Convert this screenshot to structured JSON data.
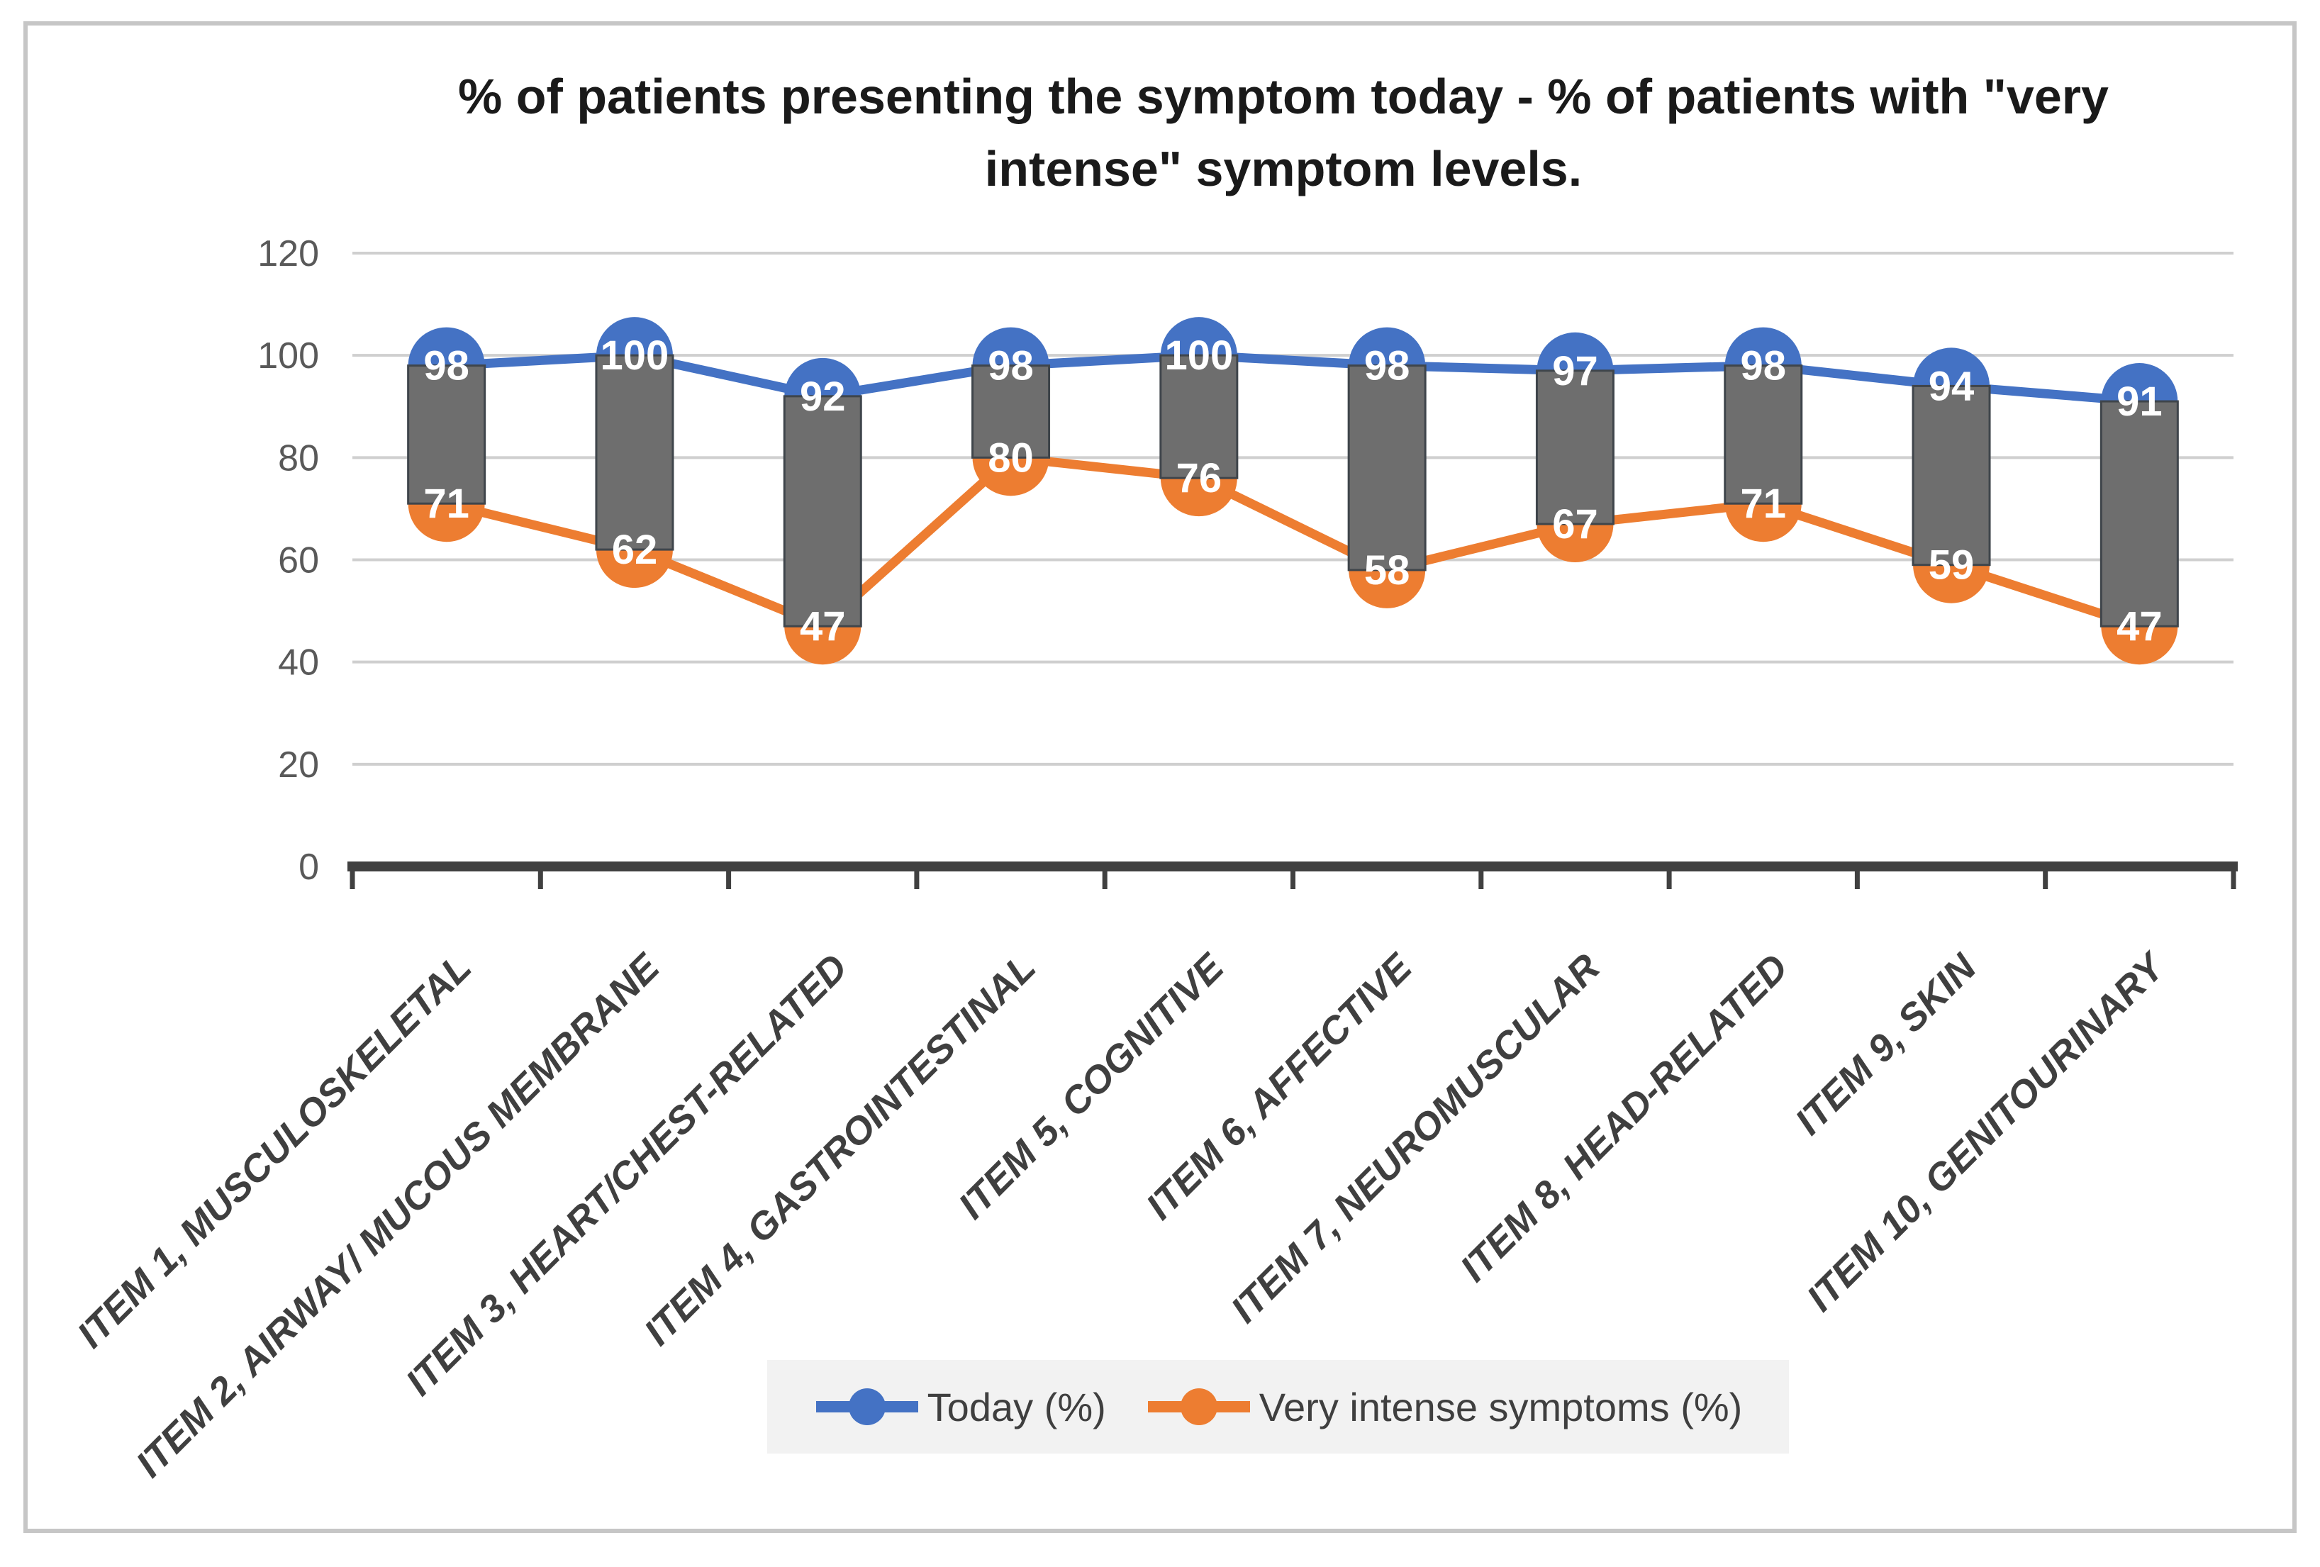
{
  "header": {
    "line1": "% of patients presenting the symptom today - % of patients with \"very",
    "line2": "intense\" symptom levels."
  },
  "legend": {
    "items": [
      {
        "label": "Today (%)"
      },
      {
        "label": "Very intense symptoms (%)"
      }
    ]
  },
  "chart_data": {
    "type": "line",
    "title": "% of patients presenting the symptom today - % of patients with \"very intense\" symptom levels.",
    "categories": [
      "ITEM 1,  MUSCULOSKELETAL",
      "ITEM 2,  AIRWAY/ MUCOUS MEMBRANE",
      "ITEM 3,  HEART/CHEST-RELATED",
      "ITEM 4,  GASTROINTESTINAL",
      "ITEM 5,  COGNITIVE",
      "ITEM 6,  AFFECTIVE",
      "ITEM 7,  NEUROMUSCULAR",
      "ITEM 8,  HEAD-RELATED",
      "ITEM 9,  SKIN",
      "ITEM 10, GENITOURINARY"
    ],
    "series": [
      {
        "name": "Today (%)",
        "color": "#4472C4",
        "values": [
          98,
          100,
          92,
          98,
          100,
          98,
          97,
          98,
          94,
          91
        ]
      },
      {
        "name": "Very intense symptoms (%)",
        "color": "#ED7D31",
        "values": [
          71,
          62,
          47,
          80,
          76,
          58,
          67,
          71,
          59,
          47
        ]
      }
    ],
    "ylim": [
      0,
      120
    ],
    "yticks": [
      0,
      20,
      40,
      60,
      80,
      100,
      120
    ],
    "grid": "horizontal",
    "legend_position": "bottom",
    "high_low_bars": true,
    "marker": "circle"
  },
  "colors": {
    "grid": "#CFCFCF",
    "axis": "#404040",
    "bar_fill": "#6E6E6E",
    "bar_border": "#3F454B",
    "tick_label": "#595959",
    "category_label": "#3F3F3F",
    "value_label": "#FFFFFF",
    "legend_bg": "#F2F2F2",
    "frame_border": "#C6C6C6",
    "title": "#1A1A1A"
  }
}
